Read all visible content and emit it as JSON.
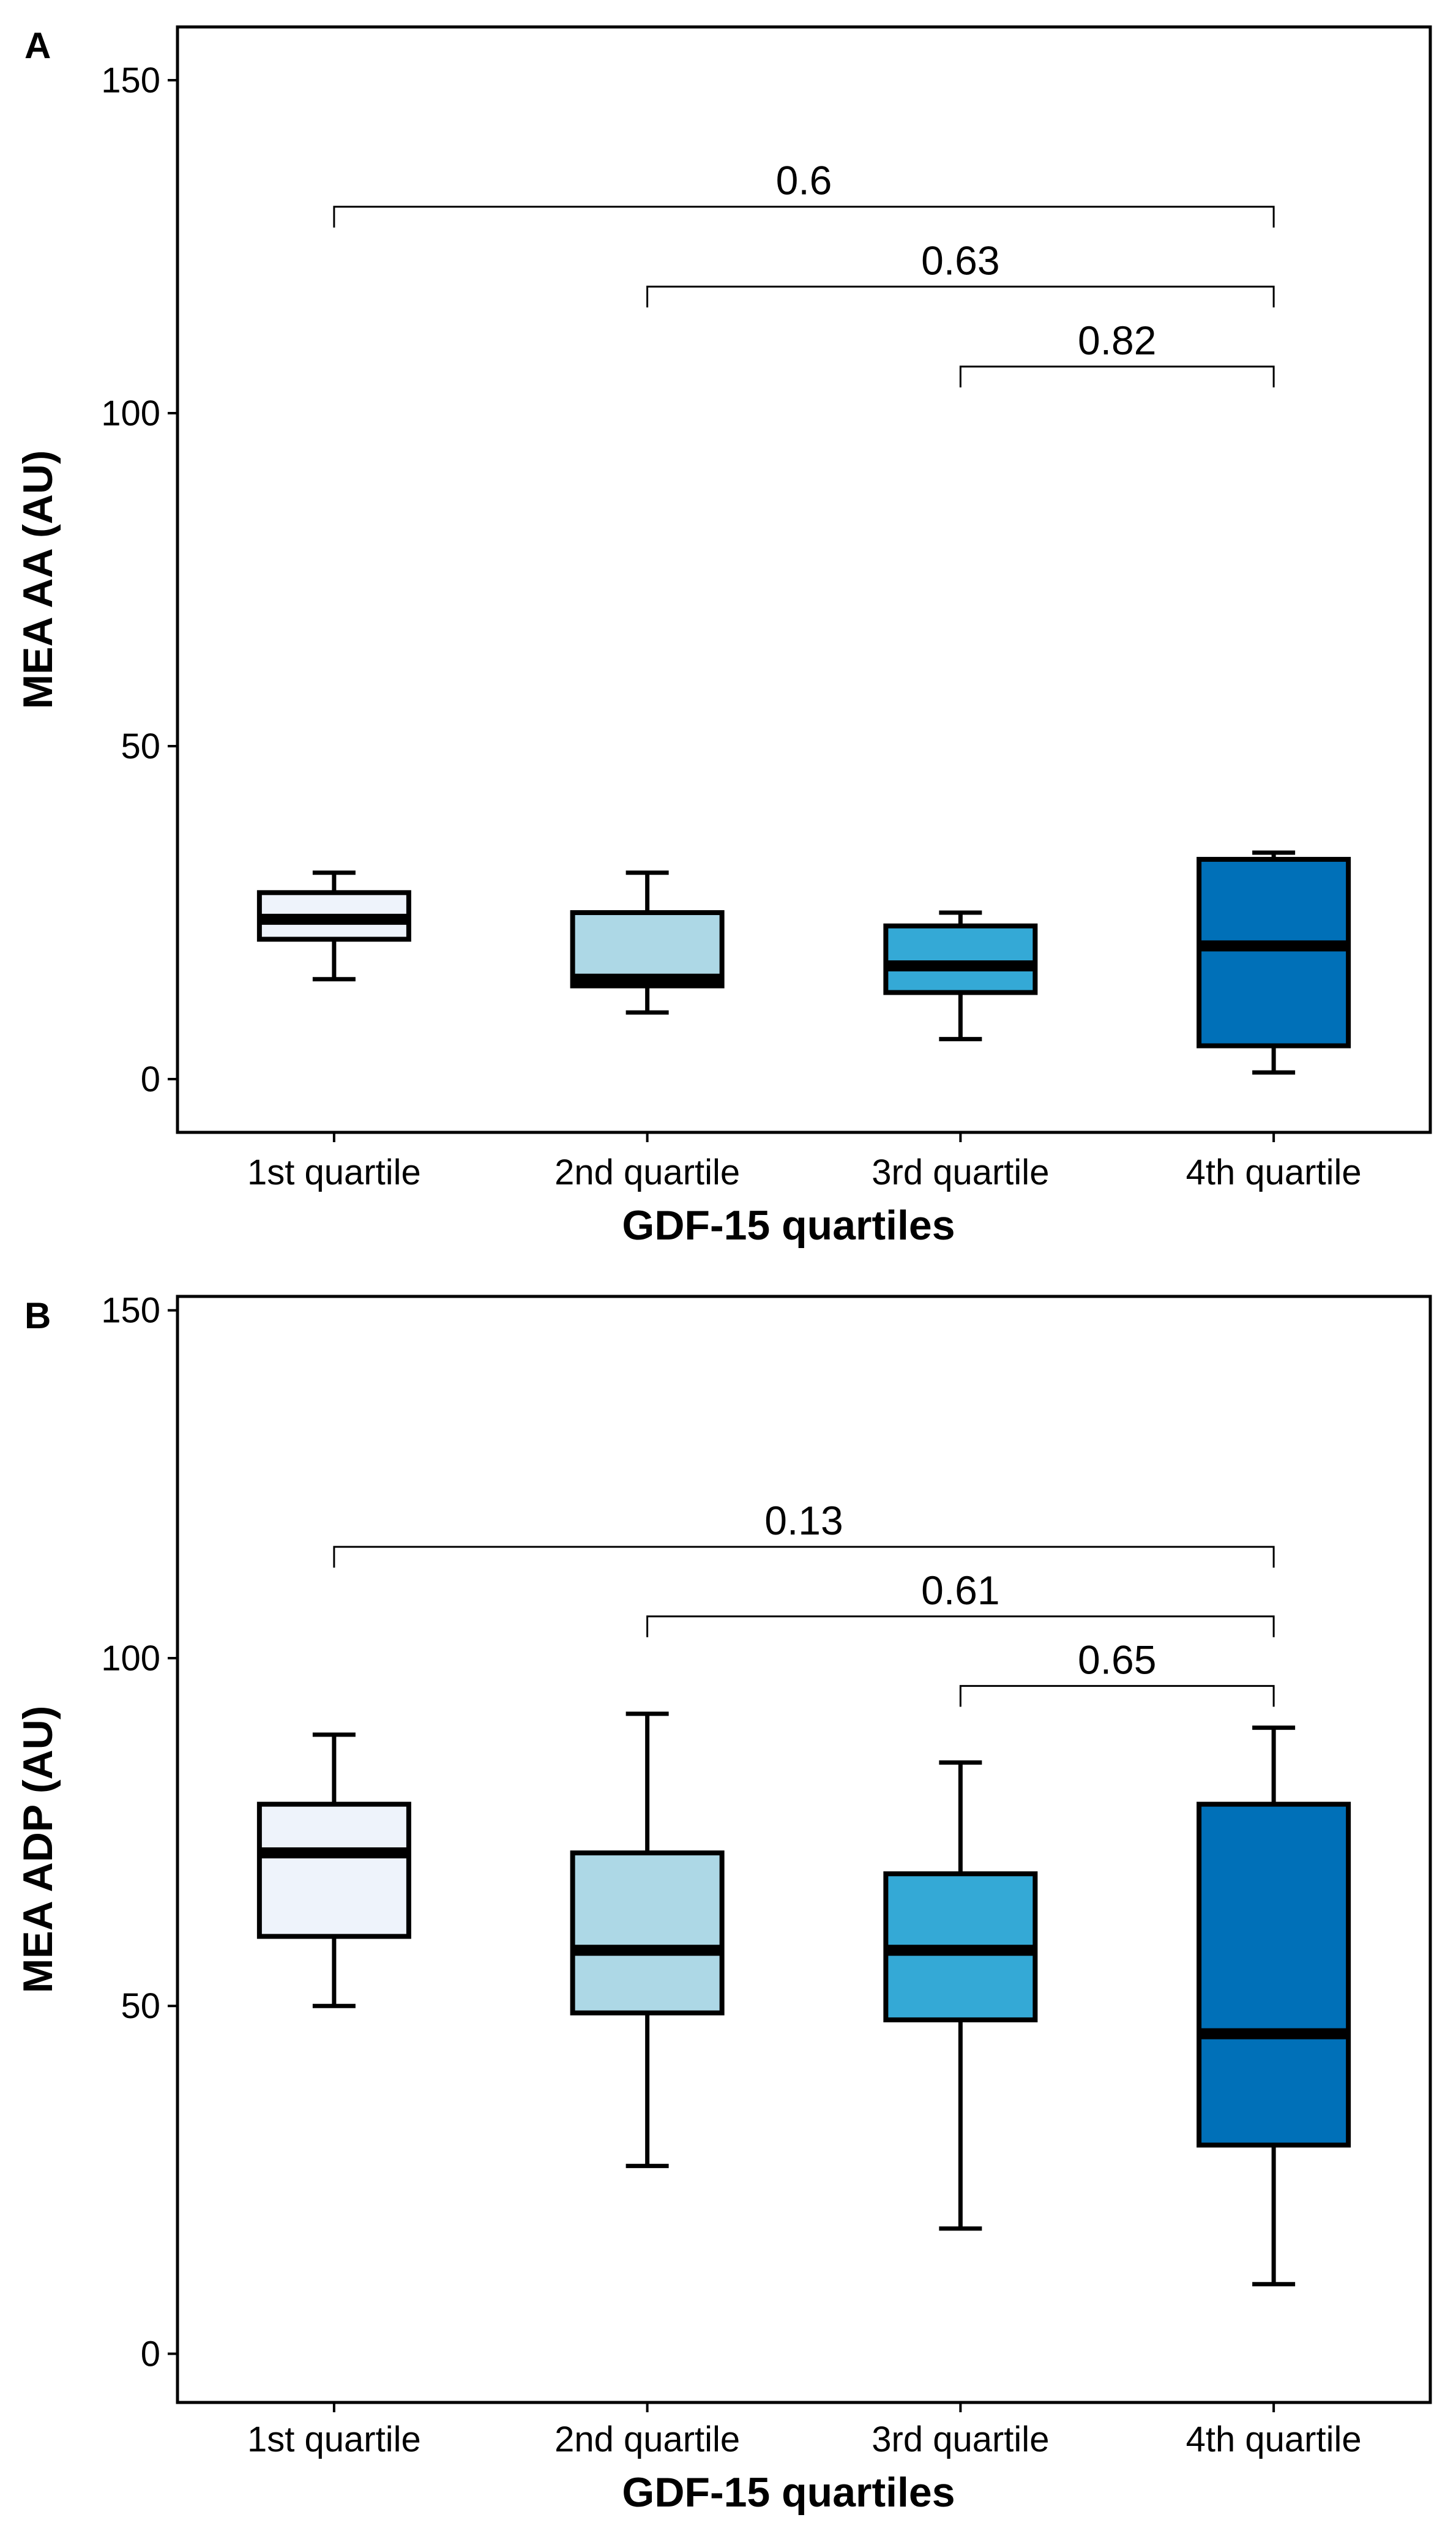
{
  "figure": {
    "panels": [
      {
        "letter": "A",
        "colors": [
          "#eef3fb",
          "#add8e6",
          "#34a9d6",
          "#0070b8"
        ]
      },
      {
        "letter": "B",
        "colors": [
          "#eef3fb",
          "#add8e6",
          "#34a9d6",
          "#0070b8"
        ]
      }
    ]
  },
  "chart_data": [
    {
      "type": "boxplot",
      "panel": "A",
      "title": "",
      "xlabel": "GDF-15 quartiles",
      "ylabel": "MEA AA (AU)",
      "ylim": [
        -8,
        158
      ],
      "yticks": [
        0,
        50,
        100,
        150
      ],
      "grid": false,
      "categories": [
        "1st quartile",
        "2nd quartile",
        "3rd quartile",
        "4th quartile"
      ],
      "boxes": [
        {
          "category": "1st quartile",
          "min": 15,
          "q1": 21,
          "median": 24,
          "q3": 28,
          "max": 31
        },
        {
          "category": "2nd quartile",
          "min": 10,
          "q1": 14,
          "median": 15,
          "q3": 25,
          "max": 31
        },
        {
          "category": "3rd quartile",
          "min": 6,
          "q1": 13,
          "median": 17,
          "q3": 23,
          "max": 25
        },
        {
          "category": "4th quartile",
          "min": 1,
          "q1": 5,
          "median": 20,
          "q3": 33,
          "max": 34
        }
      ],
      "comparisons": [
        {
          "from": "1st quartile",
          "to": "4th quartile",
          "p": "0.6",
          "y": 131
        },
        {
          "from": "2nd quartile",
          "to": "4th quartile",
          "p": "0.63",
          "y": 119
        },
        {
          "from": "3rd quartile",
          "to": "4th quartile",
          "p": "0.82",
          "y": 107
        }
      ]
    },
    {
      "type": "boxplot",
      "panel": "B",
      "title": "",
      "xlabel": "GDF-15 quartiles",
      "ylabel": "MEA ADP (AU)",
      "ylim": [
        -7,
        152
      ],
      "yticks": [
        0,
        50,
        100,
        150
      ],
      "grid": false,
      "categories": [
        "1st quartile",
        "2nd quartile",
        "3rd quartile",
        "4th quartile"
      ],
      "boxes": [
        {
          "category": "1st quartile",
          "min": 50,
          "q1": 60,
          "median": 72,
          "q3": 79,
          "max": 89
        },
        {
          "category": "2nd quartile",
          "min": 27,
          "q1": 49,
          "median": 58,
          "q3": 72,
          "max": 92
        },
        {
          "category": "3rd quartile",
          "min": 18,
          "q1": 48,
          "median": 58,
          "q3": 69,
          "max": 85
        },
        {
          "category": "4th quartile",
          "min": 10,
          "q1": 30,
          "median": 46,
          "q3": 79,
          "max": 90
        }
      ],
      "comparisons": [
        {
          "from": "1st quartile",
          "to": "4th quartile",
          "p": "0.13",
          "y": 116
        },
        {
          "from": "2nd quartile",
          "to": "4th quartile",
          "p": "0.61",
          "y": 106
        },
        {
          "from": "3rd quartile",
          "to": "4th quartile",
          "p": "0.65",
          "y": 96
        }
      ]
    }
  ]
}
